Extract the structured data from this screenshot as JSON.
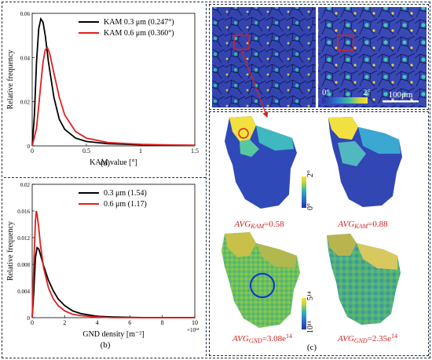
{
  "figure": {
    "panel_a_label": "(a)",
    "panel_b_label": "(b)",
    "panel_c_label": "(c)"
  },
  "chart_data": [
    {
      "type": "line",
      "xlabel": "KAM value [°]",
      "ylabel": "Relative frequency",
      "xlim": [
        0,
        1.5
      ],
      "ylim": [
        0,
        0.06
      ],
      "x_ticks": [
        "0",
        "0.5",
        "1",
        "1.5"
      ],
      "y_ticks": [
        "0",
        "0.02",
        "0.04",
        "0.06"
      ],
      "legend_position": "top-right",
      "series": [
        {
          "name": "KAM 0.3 μm (0.247°)",
          "color": "#000000",
          "x": [
            0.0,
            0.02,
            0.04,
            0.06,
            0.08,
            0.1,
            0.12,
            0.15,
            0.2,
            0.25,
            0.3,
            0.4,
            0.5,
            0.7,
            1.0,
            1.3,
            1.5
          ],
          "y": [
            0.0,
            0.014,
            0.038,
            0.053,
            0.0575,
            0.056,
            0.05,
            0.038,
            0.022,
            0.012,
            0.0075,
            0.0035,
            0.002,
            0.001,
            0.0005,
            0.0003,
            0.0002
          ]
        },
        {
          "name": "KAM 0.6 μm (0.360°)",
          "color": "#e01e1e",
          "x": [
            0.0,
            0.04,
            0.08,
            0.1,
            0.12,
            0.14,
            0.16,
            0.2,
            0.25,
            0.3,
            0.4,
            0.5,
            0.7,
            1.0,
            1.3,
            1.5
          ],
          "y": [
            0.0,
            0.008,
            0.028,
            0.038,
            0.0435,
            0.0445,
            0.042,
            0.033,
            0.022,
            0.014,
            0.0065,
            0.0035,
            0.0015,
            0.0007,
            0.0004,
            0.0003
          ]
        }
      ]
    },
    {
      "type": "line",
      "xlabel": "GND density [m⁻²]",
      "ylabel": "Relative frequency",
      "x_exponent_label": "×10¹⁴",
      "xlim": [
        0,
        10
      ],
      "ylim": [
        0,
        0.02
      ],
      "x_ticks": [
        "0",
        "2",
        "4",
        "6",
        "8",
        "10"
      ],
      "y_ticks": [
        "0",
        "0.004",
        "0.008",
        "0.012",
        "0.016",
        "0.02"
      ],
      "legend_position": "top-right",
      "series": [
        {
          "name": "0.3 μm (1.54)",
          "color": "#000000",
          "x": [
            0.0,
            0.1,
            0.2,
            0.3,
            0.4,
            0.5,
            0.7,
            1.0,
            1.3,
            1.6,
            2.0,
            2.5,
            3.0,
            4.0,
            5.0,
            7.0,
            10.0
          ],
          "y": [
            0.0,
            0.004,
            0.009,
            0.0105,
            0.0103,
            0.0095,
            0.0078,
            0.0056,
            0.004,
            0.0028,
            0.0018,
            0.001,
            0.0006,
            0.0002,
            0.0001,
            0.0,
            0.0
          ]
        },
        {
          "name": "0.6 μm (1.17)",
          "color": "#e01e1e",
          "x": [
            0.0,
            0.1,
            0.2,
            0.25,
            0.3,
            0.4,
            0.5,
            0.7,
            1.0,
            1.3,
            1.6,
            2.0,
            2.5,
            3.0,
            4.0,
            5.0,
            10.0
          ],
          "y": [
            0.0,
            0.008,
            0.0145,
            0.016,
            0.0155,
            0.0135,
            0.011,
            0.0075,
            0.0045,
            0.0028,
            0.0018,
            0.001,
            0.0005,
            0.0003,
            0.0001,
            0.0,
            0.0
          ]
        }
      ]
    }
  ],
  "maps": {
    "scale_bar_label": "100μm",
    "colorbar_min": "0°",
    "colorbar_max": "2°",
    "kam_colorbar_min": "0°",
    "kam_colorbar_max": "2°",
    "gnd_colorbar_min": "10¹¹",
    "gnd_colorbar_max": "5¹⁴",
    "avg_kam_left_label": "AVG",
    "avg_kam_left_sub": "KAM",
    "avg_kam_left_value": "=0.58",
    "avg_kam_right_label": "AVG",
    "avg_kam_right_sub": "KAM",
    "avg_kam_right_value": "=0.88",
    "avg_gnd_left_label": "AVG",
    "avg_gnd_left_sub": "GND",
    "avg_gnd_left_value": "=3.08e",
    "avg_gnd_left_exp": "14",
    "avg_gnd_right_label": "AVG",
    "avg_gnd_right_sub": "GND",
    "avg_gnd_right_value": "=2.35e",
    "avg_gnd_right_exp": "14"
  },
  "colors": {
    "series_black": "#000000",
    "series_red": "#e01e1e",
    "annotation_red": "#d42020",
    "map_blue": "#2b3fa8",
    "highlight_blue": "#1030d0"
  }
}
